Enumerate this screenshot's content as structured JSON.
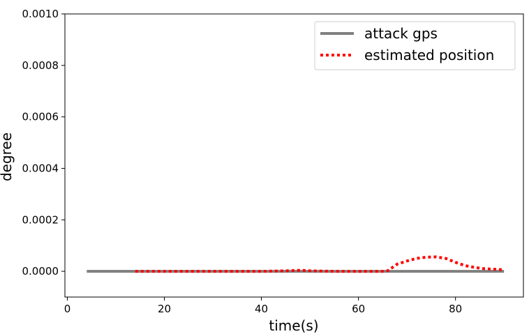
{
  "chart_data": {
    "type": "line",
    "xlabel": "time(s)",
    "ylabel": "degree",
    "xlim": [
      -0.5,
      94
    ],
    "ylim": [
      -0.0001,
      0.001
    ],
    "x_ticks": [
      0,
      20,
      40,
      60,
      80
    ],
    "x_tick_labels": [
      "0",
      "20",
      "40",
      "60",
      "80"
    ],
    "y_ticks": [
      0.0,
      0.0002,
      0.0004,
      0.0006,
      0.0008,
      0.001
    ],
    "y_tick_labels": [
      "0.0000",
      "0.0002",
      "0.0004",
      "0.0006",
      "0.0008",
      "0.0010"
    ],
    "grid": false,
    "legend_position": "top-right",
    "series": [
      {
        "name": "attack gps",
        "color": "#808080",
        "style": "solid",
        "x": [
          4,
          90
        ],
        "y": [
          0.0,
          0.0
        ]
      },
      {
        "name": "estimated position",
        "color": "#ff0000",
        "style": "dotted",
        "x": [
          14,
          20,
          30,
          40,
          45,
          48,
          50,
          55,
          60,
          65,
          66,
          68,
          70,
          72,
          74,
          76,
          78,
          80,
          82,
          84,
          86,
          88,
          90
        ],
        "y": [
          0.0,
          0.0,
          0.0,
          0.0,
          2e-06,
          4e-06,
          2e-06,
          0.0,
          0.0,
          0.0,
          2e-06,
          2.8e-05,
          4e-05,
          5e-05,
          5.5e-05,
          5.6e-05,
          5e-05,
          3.5e-05,
          2.2e-05,
          1.5e-05,
          1e-05,
          8e-06,
          6e-06
        ]
      }
    ]
  }
}
